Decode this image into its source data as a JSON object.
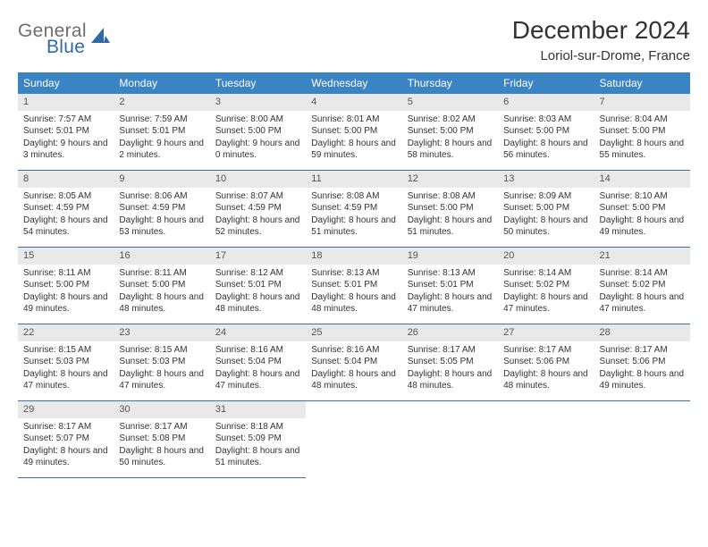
{
  "logo": {
    "word1": "General",
    "word2": "Blue"
  },
  "title": "December 2024",
  "location": "Loriol-sur-Drome, France",
  "colors": {
    "header_bg": "#3b84c4",
    "header_text": "#ffffff",
    "rule": "#3b6fa0",
    "daynum_bg": "#e9e9e9",
    "text": "#333333",
    "logo_gray": "#6e6e6e",
    "logo_blue": "#2f6aa8"
  },
  "weekdays": [
    "Sunday",
    "Monday",
    "Tuesday",
    "Wednesday",
    "Thursday",
    "Friday",
    "Saturday"
  ],
  "weeks": [
    [
      {
        "n": "1",
        "sr": "7:57 AM",
        "ss": "5:01 PM",
        "dl": "9 hours and 3 minutes."
      },
      {
        "n": "2",
        "sr": "7:59 AM",
        "ss": "5:01 PM",
        "dl": "9 hours and 2 minutes."
      },
      {
        "n": "3",
        "sr": "8:00 AM",
        "ss": "5:00 PM",
        "dl": "9 hours and 0 minutes."
      },
      {
        "n": "4",
        "sr": "8:01 AM",
        "ss": "5:00 PM",
        "dl": "8 hours and 59 minutes."
      },
      {
        "n": "5",
        "sr": "8:02 AM",
        "ss": "5:00 PM",
        "dl": "8 hours and 58 minutes."
      },
      {
        "n": "6",
        "sr": "8:03 AM",
        "ss": "5:00 PM",
        "dl": "8 hours and 56 minutes."
      },
      {
        "n": "7",
        "sr": "8:04 AM",
        "ss": "5:00 PM",
        "dl": "8 hours and 55 minutes."
      }
    ],
    [
      {
        "n": "8",
        "sr": "8:05 AM",
        "ss": "4:59 PM",
        "dl": "8 hours and 54 minutes."
      },
      {
        "n": "9",
        "sr": "8:06 AM",
        "ss": "4:59 PM",
        "dl": "8 hours and 53 minutes."
      },
      {
        "n": "10",
        "sr": "8:07 AM",
        "ss": "4:59 PM",
        "dl": "8 hours and 52 minutes."
      },
      {
        "n": "11",
        "sr": "8:08 AM",
        "ss": "4:59 PM",
        "dl": "8 hours and 51 minutes."
      },
      {
        "n": "12",
        "sr": "8:08 AM",
        "ss": "5:00 PM",
        "dl": "8 hours and 51 minutes."
      },
      {
        "n": "13",
        "sr": "8:09 AM",
        "ss": "5:00 PM",
        "dl": "8 hours and 50 minutes."
      },
      {
        "n": "14",
        "sr": "8:10 AM",
        "ss": "5:00 PM",
        "dl": "8 hours and 49 minutes."
      }
    ],
    [
      {
        "n": "15",
        "sr": "8:11 AM",
        "ss": "5:00 PM",
        "dl": "8 hours and 49 minutes."
      },
      {
        "n": "16",
        "sr": "8:11 AM",
        "ss": "5:00 PM",
        "dl": "8 hours and 48 minutes."
      },
      {
        "n": "17",
        "sr": "8:12 AM",
        "ss": "5:01 PM",
        "dl": "8 hours and 48 minutes."
      },
      {
        "n": "18",
        "sr": "8:13 AM",
        "ss": "5:01 PM",
        "dl": "8 hours and 48 minutes."
      },
      {
        "n": "19",
        "sr": "8:13 AM",
        "ss": "5:01 PM",
        "dl": "8 hours and 47 minutes."
      },
      {
        "n": "20",
        "sr": "8:14 AM",
        "ss": "5:02 PM",
        "dl": "8 hours and 47 minutes."
      },
      {
        "n": "21",
        "sr": "8:14 AM",
        "ss": "5:02 PM",
        "dl": "8 hours and 47 minutes."
      }
    ],
    [
      {
        "n": "22",
        "sr": "8:15 AM",
        "ss": "5:03 PM",
        "dl": "8 hours and 47 minutes."
      },
      {
        "n": "23",
        "sr": "8:15 AM",
        "ss": "5:03 PM",
        "dl": "8 hours and 47 minutes."
      },
      {
        "n": "24",
        "sr": "8:16 AM",
        "ss": "5:04 PM",
        "dl": "8 hours and 47 minutes."
      },
      {
        "n": "25",
        "sr": "8:16 AM",
        "ss": "5:04 PM",
        "dl": "8 hours and 48 minutes."
      },
      {
        "n": "26",
        "sr": "8:17 AM",
        "ss": "5:05 PM",
        "dl": "8 hours and 48 minutes."
      },
      {
        "n": "27",
        "sr": "8:17 AM",
        "ss": "5:06 PM",
        "dl": "8 hours and 48 minutes."
      },
      {
        "n": "28",
        "sr": "8:17 AM",
        "ss": "5:06 PM",
        "dl": "8 hours and 49 minutes."
      }
    ],
    [
      {
        "n": "29",
        "sr": "8:17 AM",
        "ss": "5:07 PM",
        "dl": "8 hours and 49 minutes."
      },
      {
        "n": "30",
        "sr": "8:17 AM",
        "ss": "5:08 PM",
        "dl": "8 hours and 50 minutes."
      },
      {
        "n": "31",
        "sr": "8:18 AM",
        "ss": "5:09 PM",
        "dl": "8 hours and 51 minutes."
      },
      null,
      null,
      null,
      null
    ]
  ],
  "labels": {
    "sunrise": "Sunrise:",
    "sunset": "Sunset:",
    "daylight": "Daylight:"
  }
}
